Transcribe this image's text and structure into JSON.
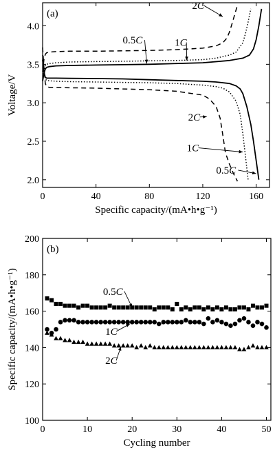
{
  "chart_data": [
    {
      "panel_label": "(a)",
      "type": "line",
      "xlabel": "Specific capacity/(mA•h•g⁻¹)",
      "ylabel": "Voltage/V",
      "xlim": [
        0,
        170
      ],
      "ylim": [
        1.9,
        4.3
      ],
      "xticks": [
        "0",
        "40",
        "80",
        "120",
        "160"
      ],
      "yticks": [
        "2.0",
        "2.5",
        "3.0",
        "3.5",
        "4.0"
      ],
      "xtick_values": [
        0,
        40,
        80,
        120,
        160
      ],
      "ytick_values": [
        2.0,
        2.5,
        3.0,
        3.5,
        4.0
      ],
      "series": [
        {
          "style": "solid",
          "charge": {
            "x": [
              0,
              1,
              2,
              3,
              5,
              10,
              20,
              40,
              60,
              80,
              100,
              120,
              140,
              150,
              155,
              158,
              160,
              162,
              164
            ],
            "y": [
              3.28,
              3.38,
              3.44,
              3.46,
              3.47,
              3.48,
              3.485,
              3.49,
              3.495,
              3.5,
              3.51,
              3.52,
              3.55,
              3.58,
              3.62,
              3.7,
              3.82,
              4.0,
              4.22
            ]
          },
          "discharge": {
            "x": [
              0,
              1,
              2,
              3,
              5,
              10,
              20,
              40,
              60,
              80,
              100,
              120,
              130,
              140,
              145,
              148,
              150,
              153,
              156,
              158,
              160,
              162
            ],
            "y": [
              3.56,
              3.4,
              3.33,
              3.32,
              3.32,
              3.32,
              3.318,
              3.315,
              3.31,
              3.3,
              3.29,
              3.28,
              3.27,
              3.25,
              3.22,
              3.18,
              3.12,
              2.95,
              2.72,
              2.5,
              2.25,
              2.0
            ]
          }
        },
        {
          "style": "dotted",
          "charge": {
            "x": [
              0,
              1,
              2,
              3,
              5,
              10,
              20,
              40,
              60,
              80,
              100,
              120,
              130,
              140,
              145,
              150,
              152,
              154,
              156
            ],
            "y": [
              3.3,
              3.42,
              3.48,
              3.5,
              3.51,
              3.52,
              3.53,
              3.535,
              3.54,
              3.545,
              3.55,
              3.56,
              3.58,
              3.62,
              3.66,
              3.78,
              3.9,
              4.05,
              4.22
            ]
          },
          "discharge": {
            "x": [
              0,
              1,
              2,
              3,
              5,
              10,
              20,
              40,
              60,
              80,
              100,
              120,
              130,
              135,
              140,
              145,
              148,
              150,
              152,
              154
            ],
            "y": [
              3.62,
              3.4,
              3.31,
              3.29,
              3.285,
              3.28,
              3.275,
              3.27,
              3.265,
              3.26,
              3.25,
              3.23,
              3.21,
              3.19,
              3.14,
              3.02,
              2.85,
              2.6,
              2.3,
              2.0
            ]
          }
        },
        {
          "style": "dashed",
          "charge": {
            "x": [
              0,
              1,
              2,
              3,
              5,
              10,
              20,
              40,
              60,
              80,
              100,
              120,
              130,
              135,
              138,
              140,
              142,
              144,
              146
            ],
            "y": [
              3.4,
              3.56,
              3.63,
              3.65,
              3.66,
              3.665,
              3.67,
              3.67,
              3.675,
              3.68,
              3.69,
              3.71,
              3.74,
              3.78,
              3.84,
              3.92,
              4.03,
              4.15,
              4.27
            ]
          },
          "discharge": {
            "x": [
              0,
              1,
              2,
              3,
              5,
              10,
              20,
              40,
              60,
              80,
              100,
              120,
              125,
              130,
              133,
              135,
              137,
              140,
              143,
              146
            ],
            "y": [
              3.72,
              3.45,
              3.25,
              3.21,
              3.2,
              3.2,
              3.195,
              3.19,
              3.18,
              3.17,
              3.15,
              3.1,
              3.05,
              2.95,
              2.8,
              2.58,
              2.35,
              2.2,
              2.08,
              1.98
            ]
          }
        }
      ],
      "annotations": [
        {
          "label": "2C",
          "text_at": [
            112,
            4.22
          ],
          "arrow_to": [
            135,
            4.12
          ]
        },
        {
          "label": "1C",
          "text_at": [
            99,
            3.74
          ],
          "arrow_to": [
            108,
            3.55
          ]
        },
        {
          "label": "0.5C",
          "text_at": [
            60,
            3.77
          ],
          "arrow_to": [
            78,
            3.51
          ]
        },
        {
          "label": "2C",
          "text_at": [
            109,
            2.77
          ],
          "arrow_to": [
            123,
            2.82
          ]
        },
        {
          "label": "1C",
          "text_at": [
            108,
            2.37
          ],
          "arrow_to": [
            150,
            2.36
          ]
        },
        {
          "label": "0.5C",
          "text_at": [
            130,
            2.08
          ],
          "arrow_to": [
            160,
            2.08
          ]
        }
      ]
    },
    {
      "panel_label": "(b)",
      "type": "scatter",
      "xlabel": "Cycling number",
      "ylabel": "Specific capacity/(mA•h•g⁻¹)",
      "xlim": [
        0,
        51
      ],
      "ylim": [
        100,
        200
      ],
      "xticks": [
        "0",
        "10",
        "20",
        "30",
        "40",
        "50"
      ],
      "yticks": [
        "100",
        "120",
        "140",
        "160",
        "180",
        "200"
      ],
      "xtick_values": [
        0,
        10,
        20,
        30,
        40,
        50
      ],
      "ytick_values": [
        100,
        120,
        140,
        160,
        180,
        200
      ],
      "x": [
        1,
        2,
        3,
        4,
        5,
        6,
        7,
        8,
        9,
        10,
        11,
        12,
        13,
        14,
        15,
        16,
        17,
        18,
        19,
        20,
        21,
        22,
        23,
        24,
        25,
        26,
        27,
        28,
        29,
        30,
        31,
        32,
        33,
        34,
        35,
        36,
        37,
        38,
        39,
        40,
        41,
        42,
        43,
        44,
        45,
        46,
        47,
        48,
        49,
        50
      ],
      "series": [
        {
          "marker": "square",
          "values": [
            167,
            166,
            164,
            164,
            163,
            163,
            163,
            162,
            163,
            163,
            162,
            162,
            162,
            162,
            163,
            162,
            162,
            162,
            162,
            162,
            162,
            162,
            162,
            162,
            161,
            162,
            162,
            162,
            161,
            164,
            161,
            162,
            161,
            162,
            162,
            161,
            162,
            161,
            162,
            161,
            162,
            161,
            161,
            162,
            162,
            161,
            163,
            162,
            162,
            163
          ]
        },
        {
          "marker": "circle",
          "values": [
            150,
            148,
            150,
            154,
            155,
            155,
            155,
            154,
            154,
            154,
            154,
            154,
            154,
            154,
            154,
            154,
            154,
            154,
            154,
            154,
            154,
            154,
            154,
            154,
            154,
            153,
            154,
            154,
            154,
            154,
            154,
            155,
            154,
            154,
            154,
            153,
            156,
            154,
            155,
            154,
            153,
            152,
            153,
            155,
            156,
            154,
            152,
            154,
            153,
            151
          ]
        },
        {
          "marker": "triangle",
          "values": [
            148,
            147,
            145,
            145,
            144,
            144,
            143,
            143,
            143,
            142,
            142,
            142,
            142,
            142,
            142,
            141,
            141,
            141,
            141,
            141,
            140,
            141,
            140,
            141,
            140,
            140,
            140,
            140,
            140,
            140,
            140,
            140,
            140,
            140,
            140,
            140,
            140,
            140,
            140,
            140,
            140,
            140,
            140,
            139,
            139,
            140,
            141,
            140,
            140,
            140
          ]
        }
      ],
      "annotations": [
        {
          "label": "0.5C",
          "text_at": [
            13.5,
            169
          ],
          "arrow_to": [
            20,
            162
          ]
        },
        {
          "label": "1C",
          "text_at": [
            14,
            147
          ],
          "arrow_to": [
            19.5,
            153
          ]
        },
        {
          "label": "2C",
          "text_at": [
            14,
            131
          ],
          "arrow_to": [
            17.5,
            140.5
          ]
        }
      ]
    }
  ]
}
